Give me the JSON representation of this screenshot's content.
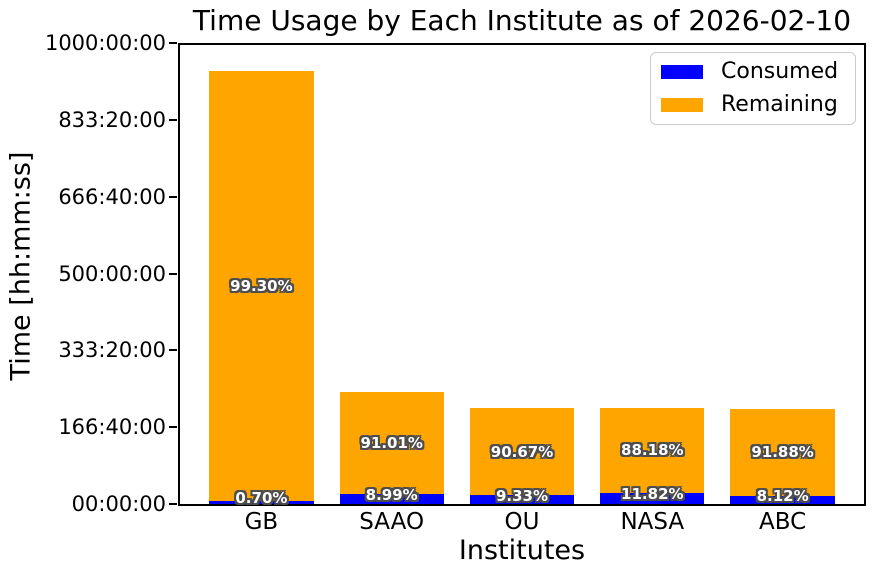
{
  "chart_data": {
    "type": "bar",
    "stacked": true,
    "title": "Time Usage by Each Institute as of 2026-02-10",
    "xlabel": "Institutes",
    "ylabel": "Time [hh:mm:ss]",
    "categories": [
      "GB",
      "SAAO",
      "OU",
      "NASA",
      "ABC"
    ],
    "series": [
      {
        "name": "Consumed",
        "color": "#0000ff",
        "values_hours": [
          6.6,
          21.8,
          19.4,
          24.6,
          16.8
        ],
        "percent_labels": [
          "0.70%",
          "8.99%",
          "9.33%",
          "11.82%",
          "8.12%"
        ]
      },
      {
        "name": "Remaining",
        "color": "#ffa500",
        "values_hours": [
          933.4,
          220.2,
          188.6,
          183.4,
          190.2
        ],
        "percent_labels": [
          "99.30%",
          "91.01%",
          "90.67%",
          "88.18%",
          "91.88%"
        ]
      }
    ],
    "totals_hours": [
      940,
      242,
      208,
      208,
      207
    ],
    "ylim_hours": [
      0,
      1000
    ],
    "ytick_labels": [
      "00:00:00",
      "166:40:00",
      "333:20:00",
      "500:00:00",
      "666:40:00",
      "833:20:00",
      "1000:00:00"
    ],
    "grid": false,
    "legend": {
      "position": "upper right",
      "entries": [
        "Consumed",
        "Remaining"
      ]
    },
    "label_text_color": "#ffffff",
    "label_outline_color": "#4d4d4d",
    "axis_color": "#000000",
    "background_color": "#ffffff"
  }
}
